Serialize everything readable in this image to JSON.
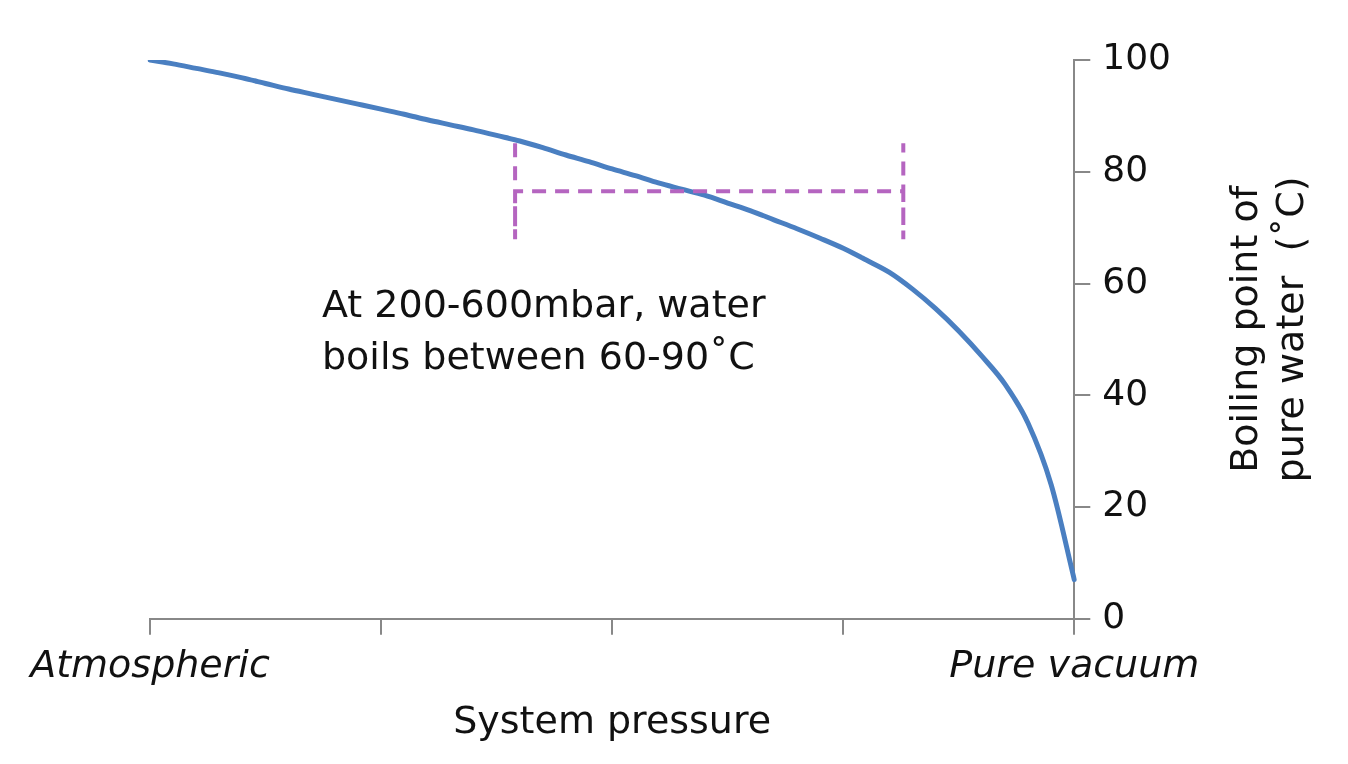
{
  "chart_data": {
    "type": "line",
    "xlabel": "System pressure",
    "ylabel": "Boiling point of pure water  (˚C)",
    "categories": [
      "Atmospheric",
      null,
      null,
      null,
      null,
      null,
      null,
      null,
      null,
      null,
      null,
      null,
      null,
      null,
      null,
      null,
      null,
      null,
      null,
      null,
      null,
      null,
      null,
      null,
      null,
      null,
      null,
      null,
      null,
      null,
      null,
      null,
      null,
      null,
      null,
      null,
      null,
      null,
      null,
      null,
      "Pure vacuum"
    ],
    "series": [
      {
        "color": "#4a7fc1",
        "values": [
          100,
          99.3,
          98.5,
          97.7,
          96.8,
          95.8,
          94.8,
          93.9,
          93,
          92.1,
          91.2,
          90.3,
          89.3,
          88.4,
          87.5,
          86.5,
          85.5,
          84.3,
          83,
          81.8,
          80.5,
          79.3,
          78,
          76.9,
          75.8,
          74.4,
          73,
          71.4,
          69.8,
          68.1,
          66.3,
          64.2,
          62,
          59,
          55.5,
          51.5,
          47,
          42,
          35,
          24,
          7
        ]
      }
    ],
    "ylim": [
      0,
      100
    ],
    "yticks": [
      0,
      20,
      40,
      60,
      80,
      100
    ],
    "grid": false,
    "legend": false,
    "marker": "none",
    "line_style": "solid",
    "ref_lines": [
      {
        "axis": "y",
        "value": 76.5,
        "label": "At 200-600mbar, water boils between 60-90˚C",
        "color": "#b565c0",
        "line_style": "dashed"
      }
    ]
  }
}
